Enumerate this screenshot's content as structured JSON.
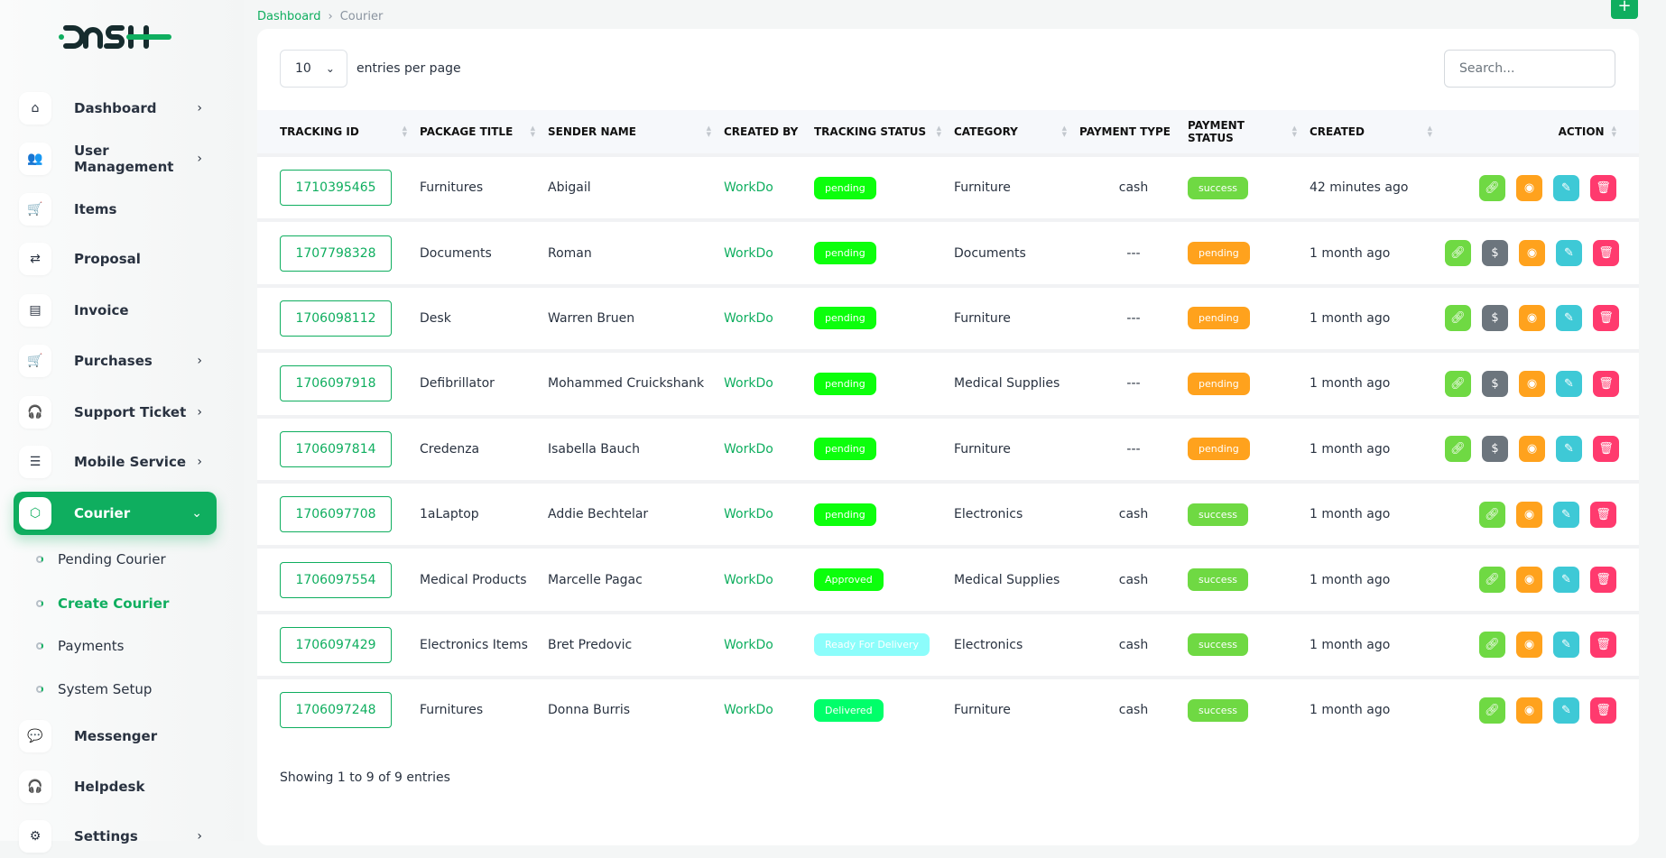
{
  "brand": {
    "logo_text": "DASH"
  },
  "sidebar": {
    "items": [
      {
        "label": "Dashboard",
        "icon": "home-icon",
        "chevron": true
      },
      {
        "label": "User Management",
        "icon": "users-icon",
        "chevron": true
      },
      {
        "label": "Items",
        "icon": "cart-icon",
        "chevron": false
      },
      {
        "label": "Proposal",
        "icon": "proposal-icon",
        "chevron": false
      },
      {
        "label": "Invoice",
        "icon": "file-icon",
        "chevron": false
      },
      {
        "label": "Purchases",
        "icon": "cart-icon",
        "chevron": true
      },
      {
        "label": "Support Ticket",
        "icon": "headphones-icon",
        "chevron": true
      },
      {
        "label": "Mobile Service",
        "icon": "menu-icon",
        "chevron": true
      },
      {
        "label": "Courier",
        "icon": "package-icon",
        "chevron": true,
        "active": true
      },
      {
        "label": "Messenger",
        "icon": "chat-icon",
        "chevron": false
      },
      {
        "label": "Helpdesk",
        "icon": "headphones-icon",
        "chevron": false
      },
      {
        "label": "Settings",
        "icon": "gear-icon",
        "chevron": true
      }
    ],
    "courier_sub": [
      {
        "label": "Pending Courier"
      },
      {
        "label": "Create Courier",
        "active": true
      },
      {
        "label": "Payments"
      },
      {
        "label": "System Setup"
      }
    ]
  },
  "breadcrumb": {
    "home": "Dashboard",
    "current": "Courier"
  },
  "toolbar": {
    "add_label": "+",
    "entries_value": "10",
    "entries_label": "entries per page",
    "search_placeholder": "Search..."
  },
  "table": {
    "headers": [
      "TRACKING ID",
      "PACKAGE TITLE",
      "SENDER NAME",
      "CREATED BY",
      "TRACKING STATUS",
      "CATEGORY",
      "PAYMENT TYPE",
      "PAYMENT STATUS",
      "CREATED",
      "ACTION"
    ],
    "rows": [
      {
        "id": "1710395465",
        "title": "Furnitures",
        "sender": "Abigail",
        "by": "WorkDo",
        "tstatus": "pending",
        "tcolor": "#0cff0c",
        "category": "Furniture",
        "ptype": "cash",
        "pstatus": "success",
        "pcolor": "#6fd943",
        "created": "42 minutes ago",
        "payment_button": false
      },
      {
        "id": "1707798328",
        "title": "Documents",
        "sender": "Roman",
        "by": "WorkDo",
        "tstatus": "pending",
        "tcolor": "#0cff0c",
        "category": "Documents",
        "ptype": "---",
        "pstatus": "pending",
        "pcolor": "#ffa21d",
        "created": "1 month ago",
        "payment_button": true
      },
      {
        "id": "1706098112",
        "title": "Desk",
        "sender": "Warren Bruen",
        "by": "WorkDo",
        "tstatus": "pending",
        "tcolor": "#0cff0c",
        "category": "Furniture",
        "ptype": "---",
        "pstatus": "pending",
        "pcolor": "#ffa21d",
        "created": "1 month ago",
        "payment_button": true
      },
      {
        "id": "1706097918",
        "title": "Defibrillator",
        "sender": "Mohammed Cruickshank",
        "by": "WorkDo",
        "tstatus": "pending",
        "tcolor": "#0cff0c",
        "category": "Medical Supplies",
        "ptype": "---",
        "pstatus": "pending",
        "pcolor": "#ffa21d",
        "created": "1 month ago",
        "payment_button": true
      },
      {
        "id": "1706097814",
        "title": "Credenza",
        "sender": "Isabella Bauch",
        "by": "WorkDo",
        "tstatus": "pending",
        "tcolor": "#0cff0c",
        "category": "Furniture",
        "ptype": "---",
        "pstatus": "pending",
        "pcolor": "#ffa21d",
        "created": "1 month ago",
        "payment_button": true
      },
      {
        "id": "1706097708",
        "title": "1aLaptop",
        "sender": "Addie Bechtelar",
        "by": "WorkDo",
        "tstatus": "pending",
        "tcolor": "#0cff0c",
        "category": "Electronics",
        "ptype": "cash",
        "pstatus": "success",
        "pcolor": "#6fd943",
        "created": "1 month ago",
        "payment_button": false
      },
      {
        "id": "1706097554",
        "title": "Medical Products",
        "sender": "Marcelle Pagac",
        "by": "WorkDo",
        "tstatus": "Approved",
        "tcolor": "#0cff0c",
        "category": "Medical Supplies",
        "ptype": "cash",
        "pstatus": "success",
        "pcolor": "#6fd943",
        "created": "1 month ago",
        "payment_button": false
      },
      {
        "id": "1706097429",
        "title": "Electronics Items",
        "sender": "Bret Predovic",
        "by": "WorkDo",
        "tstatus": "Ready For Delivery",
        "tcolor": "#8cfdfb",
        "category": "Electronics",
        "ptype": "cash",
        "pstatus": "success",
        "pcolor": "#6fd943",
        "created": "1 month ago",
        "payment_button": false
      },
      {
        "id": "1706097248",
        "title": "Furnitures",
        "sender": "Donna Burris",
        "by": "WorkDo",
        "tstatus": "Delivered",
        "tcolor": "#00ff6a",
        "category": "Furniture",
        "ptype": "cash",
        "pstatus": "success",
        "pcolor": "#6fd943",
        "created": "1 month ago",
        "payment_button": false
      }
    ],
    "action_colors": {
      "link": "#6fd943",
      "payment": "#6c757d",
      "view": "#ffa21d",
      "edit": "#3ec9d6",
      "delete": "#ff3a6e"
    }
  },
  "footer": {
    "info": "Showing 1 to 9 of 9 entries"
  }
}
